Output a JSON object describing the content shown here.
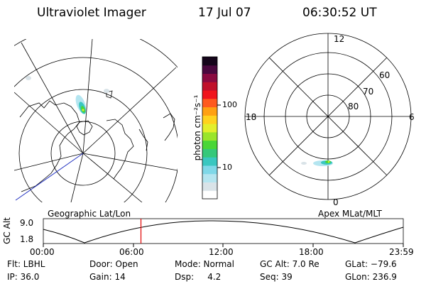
{
  "header": {
    "title": "Ultraviolet Imager",
    "date": "17 Jul 07",
    "time": "06:30:52 UT"
  },
  "left_map": {
    "label": "Geographic Lat/Lon"
  },
  "right_map": {
    "label": "Apex MLat/MLT",
    "mlt_labels": [
      "12",
      "18",
      "6",
      "0"
    ],
    "lat_labels": [
      "60",
      "70",
      "80"
    ]
  },
  "colorbar": {
    "unit_label": "photon cm⁻²s⁻¹",
    "tick_100": "100",
    "tick_10": "10",
    "colors": [
      "#ffffff",
      "#d9e3e8",
      "#b4e5f0",
      "#7fd8e8",
      "#39c7c0",
      "#35c87a",
      "#49d637",
      "#9ae52b",
      "#e3ef2c",
      "#ffd21e",
      "#ffa012",
      "#ff5a1e",
      "#f0141c",
      "#c0102a",
      "#8a0a40",
      "#4a083e",
      "#15051a"
    ]
  },
  "altitude_plot": {
    "y_label": "GC Alt",
    "y_max": "9.0",
    "y_min": "1.8",
    "x_ticks": [
      "00:00",
      "06:00",
      "12:00",
      "18:00",
      "23:59"
    ],
    "current_time_hours": 6.51
  },
  "info": {
    "filter": "Flt: LBHL",
    "door": "Door: Open",
    "mode": "Mode: Normal",
    "gc_alt": "GC Alt: 7.0 Re",
    "glat": "GLat: −79.6",
    "ip": "IP: 36.0",
    "gain": "Gain: 14",
    "dsp": "Dsp:     4.2",
    "seq": "Seq: 39",
    "glon": "GLon: 236.9"
  },
  "colors": {
    "red_marker": "#e00000",
    "blue_line": "#2030c0"
  }
}
